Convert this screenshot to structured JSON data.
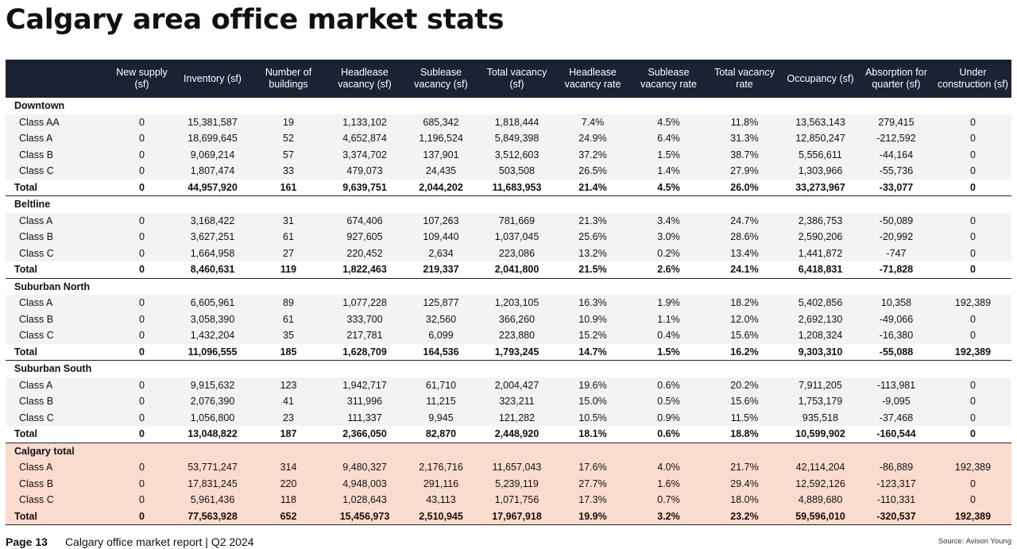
{
  "title": "Calgary area office market stats",
  "headers": [
    "",
    "New supply (sf)",
    "Inventory (sf)",
    "Number of buildings",
    "Headlease vacancy (sf)",
    "Sublease vacancy (sf)",
    "Total vacancy (sf)",
    "Headlease vacancy rate",
    "Sublease vacancy rate",
    "Total vacancy rate",
    "Occupancy (sf)",
    "Absorption for quarter (sf)",
    "Under construction (sf)"
  ],
  "sections": [
    {
      "name": "Downtown",
      "rows": [
        [
          "Class AA",
          "0",
          "15,381,587",
          "19",
          "1,133,102",
          "685,342",
          "1,818,444",
          "7.4%",
          "4.5%",
          "11.8%",
          "13,563,143",
          "279,415",
          "0"
        ],
        [
          "Class A",
          "0",
          "18,699,645",
          "52",
          "4,652,874",
          "1,196,524",
          "5,849,398",
          "24.9%",
          "6.4%",
          "31.3%",
          "12,850,247",
          "-212,592",
          "0"
        ],
        [
          "Class B",
          "0",
          "9,069,214",
          "57",
          "3,374,702",
          "137,901",
          "3,512,603",
          "37.2%",
          "1.5%",
          "38.7%",
          "5,556,611",
          "-44,164",
          "0"
        ],
        [
          "Class C",
          "0",
          "1,807,474",
          "33",
          "479,073",
          "24,435",
          "503,508",
          "26.5%",
          "1.4%",
          "27.9%",
          "1,303,966",
          "-55,736",
          "0"
        ]
      ],
      "total": [
        "Total",
        "0",
        "44,957,920",
        "161",
        "9,639,751",
        "2,044,202",
        "11,683,953",
        "21.4%",
        "4.5%",
        "26.0%",
        "33,273,967",
        "-33,077",
        "0"
      ]
    },
    {
      "name": "Beltline",
      "rows": [
        [
          "Class A",
          "0",
          "3,168,422",
          "31",
          "674,406",
          "107,263",
          "781,669",
          "21.3%",
          "3.4%",
          "24.7%",
          "2,386,753",
          "-50,089",
          "0"
        ],
        [
          "Class B",
          "0",
          "3,627,251",
          "61",
          "927,605",
          "109,440",
          "1,037,045",
          "25.6%",
          "3.0%",
          "28.6%",
          "2,590,206",
          "-20,992",
          "0"
        ],
        [
          "Class C",
          "0",
          "1,664,958",
          "27",
          "220,452",
          "2,634",
          "223,086",
          "13.2%",
          "0.2%",
          "13.4%",
          "1,441,872",
          "-747",
          "0"
        ]
      ],
      "total": [
        "Total",
        "0",
        "8,460,631",
        "119",
        "1,822,463",
        "219,337",
        "2,041,800",
        "21.5%",
        "2.6%",
        "24.1%",
        "6,418,831",
        "-71,828",
        "0"
      ]
    },
    {
      "name": "Suburban North",
      "rows": [
        [
          "Class A",
          "0",
          "6,605,961",
          "89",
          "1,077,228",
          "125,877",
          "1,203,105",
          "16.3%",
          "1.9%",
          "18.2%",
          "5,402,856",
          "10,358",
          "192,389"
        ],
        [
          "Class B",
          "0",
          "3,058,390",
          "61",
          "333,700",
          "32,560",
          "366,260",
          "10.9%",
          "1.1%",
          "12.0%",
          "2,692,130",
          "-49,066",
          "0"
        ],
        [
          "Class C",
          "0",
          "1,432,204",
          "35",
          "217,781",
          "6,099",
          "223,880",
          "15.2%",
          "0.4%",
          "15.6%",
          "1,208,324",
          "-16,380",
          "0"
        ]
      ],
      "total": [
        "Total",
        "0",
        "11,096,555",
        "185",
        "1,628,709",
        "164,536",
        "1,793,245",
        "14.7%",
        "1.5%",
        "16.2%",
        "9,303,310",
        "-55,088",
        "192,389"
      ]
    },
    {
      "name": "Suburban South",
      "rows": [
        [
          "Class A",
          "0",
          "9,915,632",
          "123",
          "1,942,717",
          "61,710",
          "2,004,427",
          "19.6%",
          "0.6%",
          "20.2%",
          "7,911,205",
          "-113,981",
          "0"
        ],
        [
          "Class B",
          "0",
          "2,076,390",
          "41",
          "311,996",
          "11,215",
          "323,211",
          "15.0%",
          "0.5%",
          "15.6%",
          "1,753,179",
          "-9,095",
          "0"
        ],
        [
          "Class C",
          "0",
          "1,056,800",
          "23",
          "111,337",
          "9,945",
          "121,282",
          "10.5%",
          "0.9%",
          "11.5%",
          "935,518",
          "-37,468",
          "0"
        ]
      ],
      "total": [
        "Total",
        "0",
        "13,048,822",
        "187",
        "2,366,050",
        "82,870",
        "2,448,920",
        "18.1%",
        "0.6%",
        "18.8%",
        "10,599,902",
        "-160,544",
        "0"
      ]
    },
    {
      "name": "Calgary total",
      "highlight": true,
      "rows": [
        [
          "Class A",
          "0",
          "53,771,247",
          "314",
          "9,480,327",
          "2,176,716",
          "11,657,043",
          "17.6%",
          "4.0%",
          "21.7%",
          "42,114,204",
          "-86,889",
          "192,389"
        ],
        [
          "Class B",
          "0",
          "17,831,245",
          "220",
          "4,948,003",
          "291,116",
          "5,239,119",
          "27.7%",
          "1.6%",
          "29.4%",
          "12,592,126",
          "-123,317",
          "0"
        ],
        [
          "Class C",
          "0",
          "5,961,436",
          "118",
          "1,028,643",
          "43,113",
          "1,071,756",
          "17.3%",
          "0.7%",
          "18.0%",
          "4,889,680",
          "-110,331",
          "0"
        ]
      ],
      "total": [
        "Total",
        "0",
        "77,563,928",
        "652",
        "15,456,973",
        "2,510,945",
        "17,967,918",
        "19.9%",
        "3.2%",
        "23.2%",
        "59,596,010",
        "-320,537",
        "192,389"
      ]
    }
  ],
  "footer": {
    "page": "Page 13",
    "report": "Calgary office market report | Q2 2024",
    "source": "Source: Avison Young"
  },
  "colors": {
    "header_bg": "#1a2233",
    "row_bg": "#f3f3f3",
    "highlight_bg": "#fadccf"
  }
}
